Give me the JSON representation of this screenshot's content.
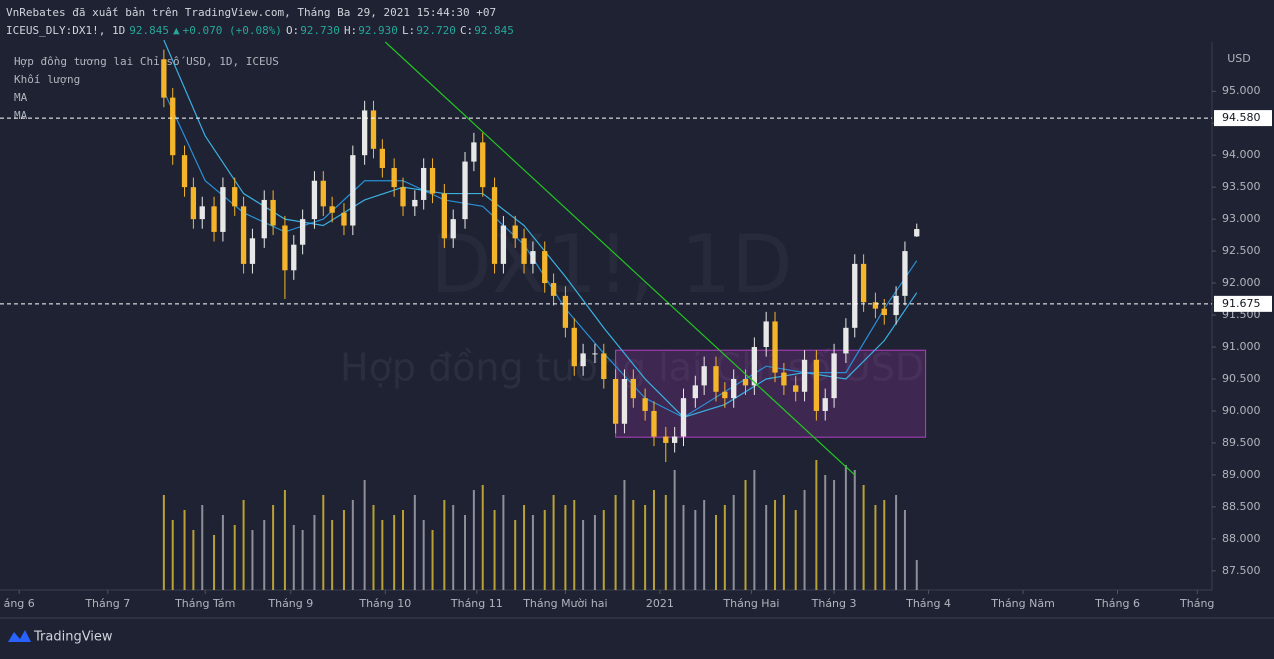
{
  "header": {
    "publisher": "VnRebates đã xuất bản trên TradingView.com, Tháng Ba 29, 2021 15:44:30 +07",
    "symbol": "ICEUS_DLY:DX1!, 1D",
    "last": "92.845",
    "arrow": "▲",
    "change": "+0.070 (+0.08%)",
    "o_label": "O:",
    "o": "92.730",
    "h_label": "H:",
    "h": "92.930",
    "l_label": "L:",
    "l": "92.720",
    "c_label": "C:",
    "c": "92.845"
  },
  "legend": {
    "instrument": "Hợp đồng tương lai Chỉ số USD, 1D, ICEUS",
    "volume": "Khối lượng",
    "ma1": "MA",
    "ma2": "MA"
  },
  "watermark": {
    "symbol": "DX1!, 1D",
    "name": "Hợp đồng tương lai Chỉ số USD"
  },
  "footer": {
    "brand": "TradingView"
  },
  "chart_data": {
    "type": "candlestick",
    "y_axis_unit": "USD",
    "up_color": "#e8e8e8",
    "down_color": "#f5b52a",
    "vol_up_color": "#8f8f9a",
    "vol_down_color": "#b9a235",
    "background": "#1e2232",
    "xlim": [
      -9.5,
      401
    ],
    "ylim": [
      87.2,
      95.77
    ],
    "xticks": [
      {
        "value": -3,
        "label": "áng 6"
      },
      {
        "value": 27,
        "label": "Tháng 7"
      },
      {
        "value": 60,
        "label": "Tháng Tám"
      },
      {
        "value": 89,
        "label": "Tháng 9"
      },
      {
        "value": 121,
        "label": "Tháng 10"
      },
      {
        "value": 152,
        "label": "Tháng 11"
      },
      {
        "value": 182,
        "label": "Tháng Mười hai"
      },
      {
        "value": 214,
        "label": "2021"
      },
      {
        "value": 245,
        "label": "Tháng Hai"
      },
      {
        "value": 273,
        "label": "Tháng 3"
      },
      {
        "value": 305,
        "label": "Tháng 4"
      },
      {
        "value": 337,
        "label": "Tháng Năm"
      },
      {
        "value": 369,
        "label": "Tháng 6"
      },
      {
        "value": 396,
        "label": "Tháng"
      }
    ],
    "yticks": [
      {
        "value": 87.5,
        "label": "87.500"
      },
      {
        "value": 88,
        "label": "88.000"
      },
      {
        "value": 88.5,
        "label": "88.500"
      },
      {
        "value": 89,
        "label": "89.000"
      },
      {
        "value": 89.5,
        "label": "89.500"
      },
      {
        "value": 90,
        "label": "90.000"
      },
      {
        "value": 90.5,
        "label": "90.500"
      },
      {
        "value": 91,
        "label": "91.000"
      },
      {
        "value": 91.5,
        "label": "91.500"
      },
      {
        "value": 92,
        "label": "92.000"
      },
      {
        "value": 92.5,
        "label": "92.500"
      },
      {
        "value": 93,
        "label": "93.000"
      },
      {
        "value": 93.5,
        "label": "93.500"
      },
      {
        "value": 94,
        "label": "94.000"
      },
      {
        "value": 94.5,
        "label": "94.500"
      },
      {
        "value": 95,
        "label": "95.000"
      }
    ],
    "x": [
      46,
      49,
      53,
      56,
      59,
      63,
      66,
      70,
      73,
      76,
      80,
      83,
      87,
      90,
      93,
      97,
      100,
      103,
      107,
      110,
      114,
      117,
      120,
      124,
      127,
      131,
      134,
      137,
      141,
      144,
      148,
      151,
      154,
      158,
      161,
      165,
      168,
      171,
      175,
      178,
      182,
      185,
      188,
      192,
      195,
      199,
      202,
      205,
      209,
      212,
      216,
      219,
      222,
      226,
      229,
      233,
      236,
      239,
      243,
      246,
      250,
      253,
      256,
      260,
      263,
      267,
      270,
      273,
      277,
      280,
      283,
      287,
      290,
      294,
      297,
      301
    ],
    "open": [
      95.5,
      94.9,
      94.0,
      93.5,
      93.0,
      93.2,
      92.8,
      93.5,
      93.2,
      92.3,
      92.7,
      93.3,
      92.9,
      92.2,
      92.6,
      93.0,
      93.6,
      93.2,
      93.1,
      92.9,
      94.0,
      94.7,
      94.1,
      93.8,
      93.5,
      93.2,
      93.3,
      93.8,
      93.4,
      92.7,
      93.0,
      93.9,
      94.2,
      93.5,
      92.3,
      92.9,
      92.7,
      92.3,
      92.5,
      92.0,
      91.8,
      91.3,
      90.7,
      90.9,
      90.9,
      90.5,
      89.8,
      90.5,
      90.2,
      90.0,
      89.6,
      89.5,
      89.6,
      90.2,
      90.4,
      90.7,
      90.3,
      90.2,
      90.5,
      90.4,
      91.0,
      91.4,
      90.6,
      90.4,
      90.3,
      90.8,
      90.0,
      90.2,
      90.9,
      91.3,
      92.3,
      91.7,
      91.6,
      91.5,
      91.8,
      92.73
    ],
    "high": [
      95.65,
      95.05,
      94.15,
      93.65,
      93.35,
      93.35,
      93.65,
      93.65,
      93.35,
      92.85,
      93.45,
      93.45,
      93.05,
      92.75,
      93.15,
      93.75,
      93.75,
      93.35,
      93.25,
      94.15,
      94.85,
      94.85,
      94.25,
      93.95,
      93.65,
      93.45,
      93.95,
      93.95,
      93.55,
      93.15,
      94.05,
      94.35,
      94.35,
      93.65,
      93.05,
      93.05,
      92.85,
      92.65,
      92.65,
      92.15,
      91.95,
      91.45,
      91.05,
      91.05,
      91.05,
      90.65,
      90.65,
      90.65,
      90.35,
      90.15,
      89.75,
      89.75,
      90.35,
      90.55,
      90.85,
      90.85,
      90.45,
      90.65,
      90.65,
      91.15,
      91.55,
      91.55,
      90.75,
      90.55,
      90.95,
      90.95,
      90.35,
      91.05,
      91.45,
      92.45,
      92.45,
      91.85,
      91.75,
      91.95,
      92.65,
      92.93
    ],
    "low": [
      94.75,
      93.85,
      93.35,
      92.85,
      92.85,
      92.65,
      92.65,
      93.05,
      92.15,
      92.15,
      92.55,
      92.75,
      91.75,
      92.05,
      92.45,
      92.85,
      93.05,
      92.95,
      92.75,
      92.75,
      93.85,
      93.95,
      93.65,
      93.35,
      93.05,
      93.05,
      93.15,
      93.25,
      92.55,
      92.55,
      92.85,
      93.75,
      93.35,
      92.15,
      92.15,
      92.55,
      92.15,
      92.15,
      91.85,
      91.65,
      91.15,
      90.55,
      90.55,
      90.75,
      90.35,
      89.65,
      89.65,
      90.05,
      89.85,
      89.45,
      89.2,
      89.35,
      89.45,
      90.05,
      90.25,
      90.15,
      90.05,
      90.05,
      90.25,
      90.25,
      90.85,
      90.45,
      90.25,
      90.15,
      90.15,
      89.85,
      89.85,
      90.05,
      90.75,
      91.15,
      91.55,
      91.45,
      91.35,
      91.35,
      91.65,
      92.72
    ],
    "close": [
      94.9,
      94.0,
      93.5,
      93.0,
      93.2,
      92.8,
      93.5,
      93.2,
      92.3,
      92.7,
      93.3,
      92.9,
      92.2,
      92.6,
      93.0,
      93.6,
      93.2,
      93.1,
      92.9,
      94.0,
      94.7,
      94.1,
      93.8,
      93.5,
      93.2,
      93.3,
      93.8,
      93.4,
      92.7,
      93.0,
      93.9,
      94.2,
      93.5,
      92.3,
      92.9,
      92.7,
      92.3,
      92.5,
      92.0,
      91.8,
      91.3,
      90.7,
      90.9,
      90.9,
      90.5,
      89.8,
      90.5,
      90.2,
      90.0,
      89.6,
      89.5,
      89.6,
      90.2,
      90.4,
      90.7,
      90.3,
      90.2,
      90.5,
      90.4,
      91.0,
      91.4,
      90.6,
      90.4,
      90.3,
      90.8,
      90.0,
      90.2,
      90.9,
      91.3,
      92.3,
      91.7,
      91.6,
      91.5,
      91.8,
      92.5,
      92.845
    ],
    "volume": [
      95,
      70,
      80,
      60,
      85,
      55,
      75,
      65,
      90,
      60,
      70,
      85,
      100,
      65,
      60,
      75,
      95,
      70,
      80,
      90,
      110,
      85,
      70,
      75,
      80,
      95,
      70,
      60,
      90,
      85,
      75,
      100,
      105,
      80,
      95,
      70,
      85,
      75,
      80,
      95,
      85,
      90,
      70,
      75,
      80,
      95,
      110,
      90,
      85,
      100,
      95,
      120,
      85,
      80,
      90,
      75,
      85,
      95,
      110,
      120,
      85,
      90,
      95,
      80,
      100,
      130,
      115,
      110,
      125,
      120,
      105,
      85,
      90,
      95,
      80,
      30
    ],
    "ma": [
      {
        "name_ref": "ma1",
        "color": "#2a8fd6",
        "x": [
          46,
          60,
          73,
          87,
          100,
          114,
          127,
          141,
          154,
          168,
          182,
          195,
          209,
          222,
          236,
          250,
          263,
          277,
          290,
          301
        ],
        "values": [
          95.0,
          93.6,
          93.1,
          92.8,
          93.0,
          93.6,
          93.6,
          93.3,
          93.2,
          92.6,
          91.6,
          90.9,
          90.2,
          89.9,
          90.3,
          90.7,
          90.6,
          90.6,
          91.6,
          92.35
        ]
      },
      {
        "name_ref": "ma2",
        "color": "#3ab0e0",
        "x": [
          46,
          60,
          73,
          87,
          100,
          114,
          127,
          141,
          154,
          168,
          182,
          195,
          209,
          222,
          236,
          250,
          263,
          277,
          290,
          301
        ],
        "values": [
          95.8,
          94.3,
          93.4,
          93.0,
          92.9,
          93.3,
          93.5,
          93.4,
          93.4,
          92.9,
          92.1,
          91.3,
          90.5,
          89.9,
          90.1,
          90.5,
          90.6,
          90.5,
          91.1,
          91.85
        ]
      }
    ],
    "price_lines": [
      {
        "value": 94.58,
        "label": "94.580"
      },
      {
        "value": 91.675,
        "label": "91.675"
      }
    ],
    "trendline": {
      "color": "#22c522",
      "x": [
        121,
        280
      ],
      "values": [
        95.77,
        89.0
      ]
    },
    "range_box": {
      "color": "#b040c0",
      "x": [
        199,
        304
      ],
      "values": [
        89.59,
        90.95
      ]
    }
  }
}
